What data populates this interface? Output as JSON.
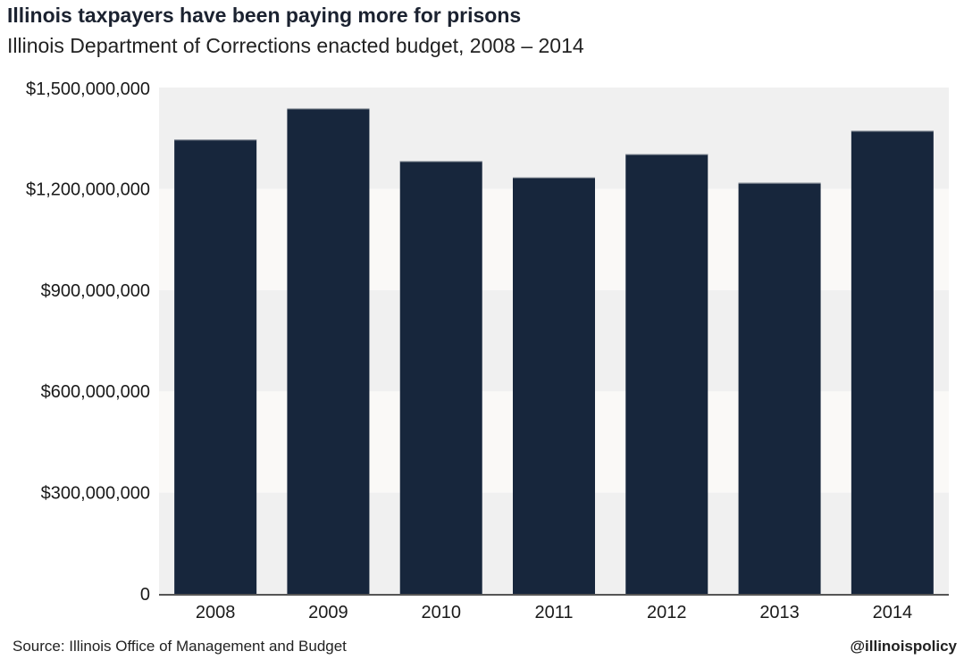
{
  "chart_data": {
    "type": "bar",
    "title": "Illinois taxpayers have been paying more for prisons",
    "subtitle": "Illinois Department of Corrections enacted budget, 2008 – 2014",
    "categories": [
      "2008",
      "2009",
      "2010",
      "2011",
      "2012",
      "2013",
      "2014"
    ],
    "values": [
      1346000000,
      1438000000,
      1282000000,
      1234000000,
      1303000000,
      1218000000,
      1372000000
    ],
    "ylim": [
      0,
      1500000000
    ],
    "yticks": [
      0,
      300000000,
      600000000,
      900000000,
      1200000000,
      1500000000
    ],
    "ytick_labels": [
      "0",
      "$300,000,000",
      "$600,000,000",
      "$900,000,000",
      "$1,200,000,000",
      "$1,500,000,000"
    ],
    "xlabel": "",
    "ylabel": "",
    "grid": "alternating horizontal bands",
    "colors": {
      "bar": "#17263c",
      "band_dark": "#f0f0f0",
      "band_light": "#faf9f7",
      "axis": "#555555"
    }
  },
  "footer": {
    "source": "Source: Illinois Office of Management and Budget",
    "handle": "@illinoispolicy"
  }
}
